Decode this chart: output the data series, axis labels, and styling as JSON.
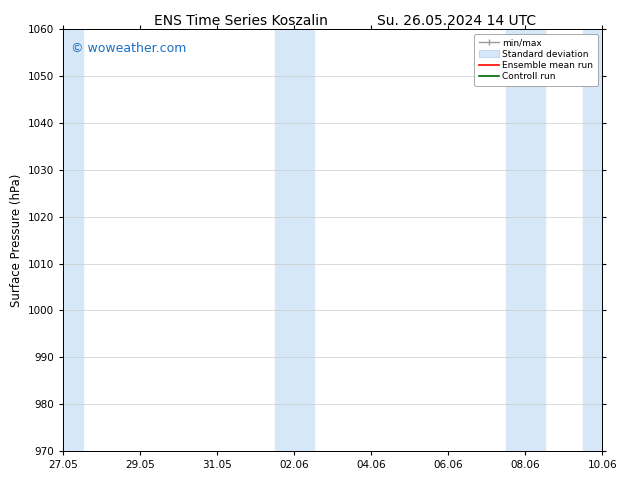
{
  "title_left": "ENS Time Series Koszalin",
  "title_right": "Su. 26.05.2024 14 UTC",
  "ylabel": "Surface Pressure (hPa)",
  "ylim": [
    970,
    1060
  ],
  "yticks": [
    970,
    980,
    990,
    1000,
    1010,
    1020,
    1030,
    1040,
    1050,
    1060
  ],
  "num_days": 14,
  "xtick_labels": [
    "27.05",
    "29.05",
    "31.05",
    "02.06",
    "04.06",
    "06.06",
    "08.06",
    "10.06"
  ],
  "xtick_positions": [
    0,
    2,
    4,
    6,
    8,
    10,
    12,
    14
  ],
  "shaded_regions": [
    {
      "start": 0.0,
      "end": 0.5,
      "color": "#d6e8f7"
    },
    {
      "start": 5.5,
      "end": 6.0,
      "color": "#d6e8f7"
    },
    {
      "start": 6.0,
      "end": 6.5,
      "color": "#d6e8f7"
    },
    {
      "start": 11.5,
      "end": 12.0,
      "color": "#d6e8f7"
    },
    {
      "start": 12.0,
      "end": 12.5,
      "color": "#d6e8f7"
    },
    {
      "start": 13.5,
      "end": 14.0,
      "color": "#d6e8f7"
    }
  ],
  "bg_color": "#ffffff",
  "plot_bg_color": "#ffffff",
  "grid_color": "#cccccc",
  "watermark_text": "© woweather.com",
  "watermark_color": "#1a6fc4",
  "title_fontsize": 10,
  "tick_fontsize": 7.5,
  "ylabel_fontsize": 8.5,
  "watermark_fontsize": 9
}
